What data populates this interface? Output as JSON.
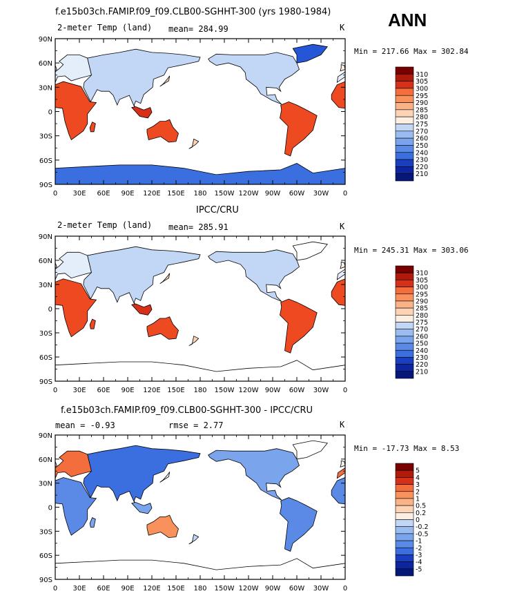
{
  "season": "ANN",
  "colorbar_default": [
    "#7a0000",
    "#b01a0a",
    "#d73018",
    "#ee4a22",
    "#f46d3c",
    "#f8915c",
    "#fab387",
    "#fcd3b5",
    "#fdeee2",
    "#e4eefb",
    "#c2d6f6",
    "#9bbcf0",
    "#7aa4ec",
    "#5a8ae6",
    "#3b6fe0",
    "#2556d6",
    "#1a3ec0",
    "#0d26a0",
    "#051877"
  ],
  "panels": [
    {
      "title": "f.e15b03ch.FAMIP.f09_f09.CLB00-SGHHT-300 (yrs 1980-1984)",
      "left_label": "2-meter Temp (land)",
      "stat_text": "mean= 284.99",
      "stat2_text": "",
      "units": "K",
      "minmax": "Min = 217.66  Max = 302.84",
      "show_antarctica": true,
      "chart_data": {
        "type": "contour-map",
        "variable": "2-meter Temp (land)",
        "units": "K",
        "mean": 284.99,
        "min": 217.66,
        "max": 302.84,
        "levels": [
          "310",
          "305",
          "300",
          "295",
          "290",
          "285",
          "280",
          "275",
          "270",
          "260",
          "250",
          "240",
          "230",
          "220",
          "210"
        ],
        "xticks": [
          "0",
          "30E",
          "60E",
          "90E",
          "120E",
          "150E",
          "180",
          "150W",
          "120W",
          "90W",
          "60W",
          "30W",
          "0"
        ],
        "yticks": [
          "90N",
          "60N",
          "30N",
          "0",
          "30S",
          "60S",
          "90S"
        ]
      }
    },
    {
      "title": "IPCC/CRU",
      "left_label": "2-meter Temp (land)",
      "stat_text": "mean= 285.91",
      "stat2_text": "",
      "units": "K",
      "minmax": "Min = 245.31  Max = 303.06",
      "show_antarctica": false,
      "chart_data": {
        "type": "contour-map",
        "variable": "2-meter Temp (land)",
        "units": "K",
        "mean": 285.91,
        "min": 245.31,
        "max": 303.06,
        "levels": [
          "310",
          "305",
          "300",
          "295",
          "290",
          "285",
          "280",
          "275",
          "270",
          "260",
          "250",
          "240",
          "230",
          "220",
          "210"
        ],
        "xticks": [
          "0",
          "30E",
          "60E",
          "90E",
          "120E",
          "150E",
          "180",
          "150W",
          "120W",
          "90W",
          "60W",
          "30W",
          "0"
        ],
        "yticks": [
          "90N",
          "60N",
          "30N",
          "0",
          "30S",
          "60S",
          "90S"
        ]
      }
    },
    {
      "title": "f.e15b03ch.FAMIP.f09_f09.CLB00-SGHHT-300 - IPCC/CRU",
      "left_label": "mean =   -0.93",
      "stat_text": "rmse =    2.77",
      "stat2_text": "",
      "units": "K",
      "minmax": "Min = -17.73  Max =    8.53",
      "show_antarctica": false,
      "chart_data": {
        "type": "contour-map",
        "variable": "difference",
        "units": "K",
        "mean": -0.93,
        "rmse": 2.77,
        "min": -17.73,
        "max": 8.53,
        "levels": [
          "5",
          "4",
          "3",
          "2",
          "1",
          "0.5",
          "0.2",
          "0",
          "-0.2",
          "-0.5",
          "-1",
          "-2",
          "-3",
          "-4",
          "-5"
        ],
        "xticks": [
          "0",
          "30E",
          "60E",
          "90E",
          "120E",
          "150E",
          "180",
          "150W",
          "120W",
          "90W",
          "60W",
          "30W",
          "0"
        ],
        "yticks": [
          "90N",
          "60N",
          "30N",
          "0",
          "30S",
          "60S",
          "90S"
        ]
      }
    }
  ]
}
